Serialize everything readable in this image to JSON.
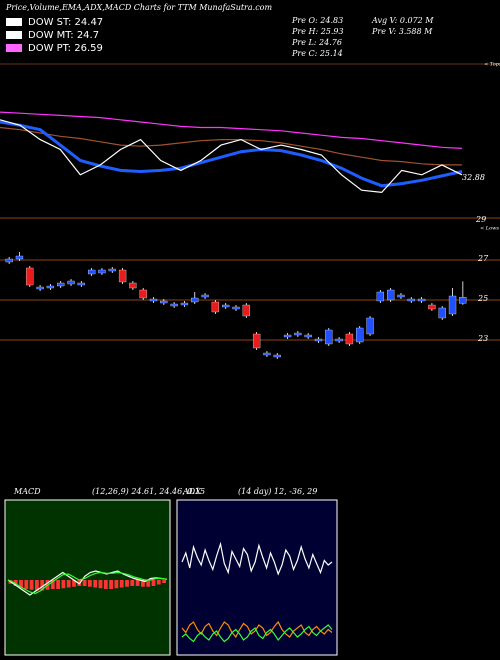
{
  "header": {
    "title": "Price,Volume,EMA,ADX,MACD Charts for TTM MunafaSutra.com",
    "legend": [
      {
        "label": "DOW ST: 24.47",
        "color": "#ffffff"
      },
      {
        "label": "DOW MT: 24.7",
        "color": "#ffffff"
      },
      {
        "label": "DOW PT: 26.59",
        "color": "#ff66ff"
      }
    ],
    "stats": [
      "Pre  O: 24.83",
      "Pre  H: 25.93",
      "Pre  L: 24.76",
      "Pre  C: 25.14",
      "Avg V: 0.072  M",
      "Pre  V: 3.588  M"
    ]
  },
  "chart_data": [
    {
      "type": "line",
      "ylim": [
        22,
        32
      ],
      "annotations": [
        "32.88",
        "< Tops",
        "29",
        "< Lows"
      ],
      "series": [
        {
          "color": "#ff33ff",
          "values": [
            30.9,
            30.8,
            30.7,
            30.6,
            30.5,
            30.4,
            30.2,
            30.0,
            29.8,
            29.6,
            29.5,
            29.5,
            29.4,
            29.3,
            29.2,
            29.0,
            28.8,
            28.6,
            28.5,
            28.3,
            28.1,
            27.9,
            27.7,
            27.6
          ]
        },
        {
          "color": "#a0522d",
          "values": [
            29.5,
            29.3,
            29.0,
            28.7,
            28.5,
            28.2,
            27.9,
            27.8,
            27.9,
            28.1,
            28.3,
            28.4,
            28.4,
            28.3,
            28.1,
            27.8,
            27.5,
            27.1,
            26.8,
            26.5,
            26.4,
            26.2,
            26.1,
            26.1
          ]
        },
        {
          "color": "#1e5eff",
          "values": [
            30.0,
            29.7,
            29.3,
            27.9,
            26.5,
            26.0,
            25.6,
            25.5,
            25.6,
            25.8,
            26.3,
            26.8,
            27.3,
            27.5,
            27.4,
            27.0,
            26.5,
            25.8,
            24.9,
            24.2,
            24.4,
            24.7,
            25.1,
            25.5
          ]
        },
        {
          "color": "#ffffff",
          "values": [
            30.2,
            29.7,
            28.4,
            27.5,
            25.2,
            26.1,
            27.5,
            28.4,
            26.5,
            25.6,
            26.5,
            27.9,
            28.4,
            27.5,
            27.9,
            27.5,
            27.0,
            25.2,
            23.8,
            23.6,
            25.6,
            25.2,
            26.1,
            25.2
          ]
        }
      ]
    },
    {
      "type": "candlestick",
      "ylim": [
        21,
        28.5
      ],
      "yticks": [
        23,
        25,
        27
      ],
      "up_color": "#2050ff",
      "down_color": "#e81c1c",
      "grid_color": "#8b4513",
      "open": [
        26.9,
        27.05,
        26.6,
        25.55,
        25.6,
        25.7,
        25.8,
        25.75,
        26.3,
        26.35,
        26.45,
        26.5,
        25.85,
        25.5,
        24.95,
        24.85,
        24.7,
        24.75,
        24.9,
        25.15,
        24.9,
        24.65,
        24.55,
        24.75,
        23.3,
        22.25,
        22.15,
        23.15,
        23.25,
        23.15,
        22.95,
        22.8,
        22.95,
        23.3,
        22.9,
        23.3,
        24.95,
        25.0,
        25.15,
        24.95,
        24.95,
        24.75,
        24.1,
        24.3,
        24.83
      ],
      "high": [
        27.15,
        27.4,
        26.7,
        25.75,
        25.8,
        25.95,
        26.05,
        25.95,
        26.6,
        26.6,
        26.65,
        26.6,
        25.95,
        25.6,
        25.15,
        25.05,
        24.9,
        24.95,
        25.4,
        25.35,
        25.0,
        24.85,
        24.75,
        24.85,
        23.4,
        22.45,
        22.35,
        23.35,
        23.45,
        23.35,
        23.15,
        23.6,
        23.15,
        23.4,
        23.7,
        24.2,
        25.5,
        25.6,
        25.35,
        25.15,
        25.15,
        24.85,
        24.7,
        25.6,
        25.93
      ],
      "low": [
        26.8,
        26.95,
        25.65,
        25.45,
        25.5,
        25.6,
        25.7,
        25.65,
        26.2,
        26.25,
        26.35,
        25.8,
        25.5,
        25.0,
        24.85,
        24.75,
        24.6,
        24.65,
        24.8,
        25.05,
        24.3,
        24.55,
        24.45,
        24.1,
        22.5,
        22.15,
        22.05,
        23.05,
        23.15,
        23.05,
        22.85,
        22.7,
        22.85,
        22.7,
        22.8,
        23.2,
        24.85,
        24.9,
        25.05,
        24.85,
        24.85,
        24.45,
        24.0,
        24.2,
        24.76
      ],
      "close": [
        27.05,
        27.2,
        25.75,
        25.65,
        25.7,
        25.85,
        25.95,
        25.85,
        26.5,
        26.5,
        26.55,
        25.9,
        25.6,
        25.1,
        25.05,
        24.95,
        24.8,
        24.85,
        25.1,
        25.25,
        24.4,
        24.75,
        24.65,
        24.2,
        22.6,
        22.35,
        22.25,
        23.25,
        23.35,
        23.25,
        23.05,
        23.5,
        23.05,
        22.8,
        23.6,
        24.1,
        25.4,
        25.5,
        25.25,
        25.05,
        25.05,
        24.55,
        24.6,
        25.2,
        25.14
      ]
    },
    {
      "type": "macd",
      "title": "MACD",
      "params": "(12,26,9) 24.61, 24.46, 0.15",
      "ylim": [
        -1,
        1
      ],
      "hist_color": "#ff3333",
      "histogram": [
        -0.05,
        -0.08,
        -0.1,
        -0.12,
        -0.13,
        -0.14,
        -0.14,
        -0.13,
        -0.12,
        -0.12,
        -0.11,
        -0.1,
        -0.09,
        -0.08,
        -0.08,
        -0.09,
        -0.1,
        -0.11,
        -0.12,
        -0.12,
        -0.11,
        -0.1,
        -0.09,
        -0.08,
        -0.08,
        -0.09,
        -0.09,
        -0.08,
        -0.06,
        -0.04
      ],
      "series": [
        {
          "color": "#ffffff",
          "values": [
            0,
            -0.05,
            -0.1,
            -0.15,
            -0.2,
            -0.15,
            -0.1,
            -0.05,
            0,
            0.05,
            0.1,
            0.05,
            0,
            -0.05,
            0.05,
            0.1,
            0.12,
            0.1,
            0.08,
            0.1,
            0.12,
            0.08,
            0.05,
            0.02,
            0,
            -0.02,
            0.02,
            0.03,
            0.02,
            0.01
          ]
        },
        {
          "color": "#33ff33",
          "values": [
            0,
            -0.03,
            -0.08,
            -0.12,
            -0.16,
            -0.18,
            -0.14,
            -0.08,
            -0.03,
            0.02,
            0.07,
            0.08,
            0.04,
            0,
            0.02,
            0.06,
            0.09,
            0.1,
            0.09,
            0.09,
            0.1,
            0.09,
            0.07,
            0.04,
            0.02,
            0,
            0,
            0.02,
            0.02,
            0.01
          ]
        }
      ]
    },
    {
      "type": "adx",
      "title": "ADX",
      "params": "(14 day) 12, -36, 29",
      "ylim": [
        0,
        100
      ],
      "series": [
        {
          "color": "#ffffff",
          "values": [
            62,
            68,
            58,
            72,
            65,
            60,
            70,
            63,
            57,
            66,
            74,
            61,
            55,
            69,
            64,
            59,
            71,
            67,
            56,
            62,
            73,
            65,
            58,
            68,
            62,
            54,
            60,
            70,
            66,
            57,
            63,
            72,
            64,
            58,
            67,
            61,
            55,
            63,
            60,
            62
          ]
        },
        {
          "color": "#ff8c00",
          "values": [
            18,
            15,
            20,
            22,
            17,
            14,
            19,
            21,
            16,
            13,
            18,
            22,
            20,
            15,
            12,
            17,
            21,
            19,
            14,
            16,
            20,
            18,
            13,
            15,
            19,
            22,
            17,
            14,
            12,
            16,
            18,
            20,
            15,
            13,
            17,
            19,
            16,
            14,
            17,
            15
          ]
        },
        {
          "color": "#33ff33",
          "values": [
            12,
            14,
            11,
            9,
            13,
            15,
            12,
            10,
            14,
            16,
            12,
            9,
            11,
            15,
            17,
            14,
            10,
            12,
            16,
            18,
            13,
            11,
            15,
            17,
            14,
            10,
            13,
            16,
            18,
            15,
            12,
            14,
            17,
            19,
            15,
            13,
            16,
            18,
            20,
            17
          ]
        }
      ]
    }
  ]
}
